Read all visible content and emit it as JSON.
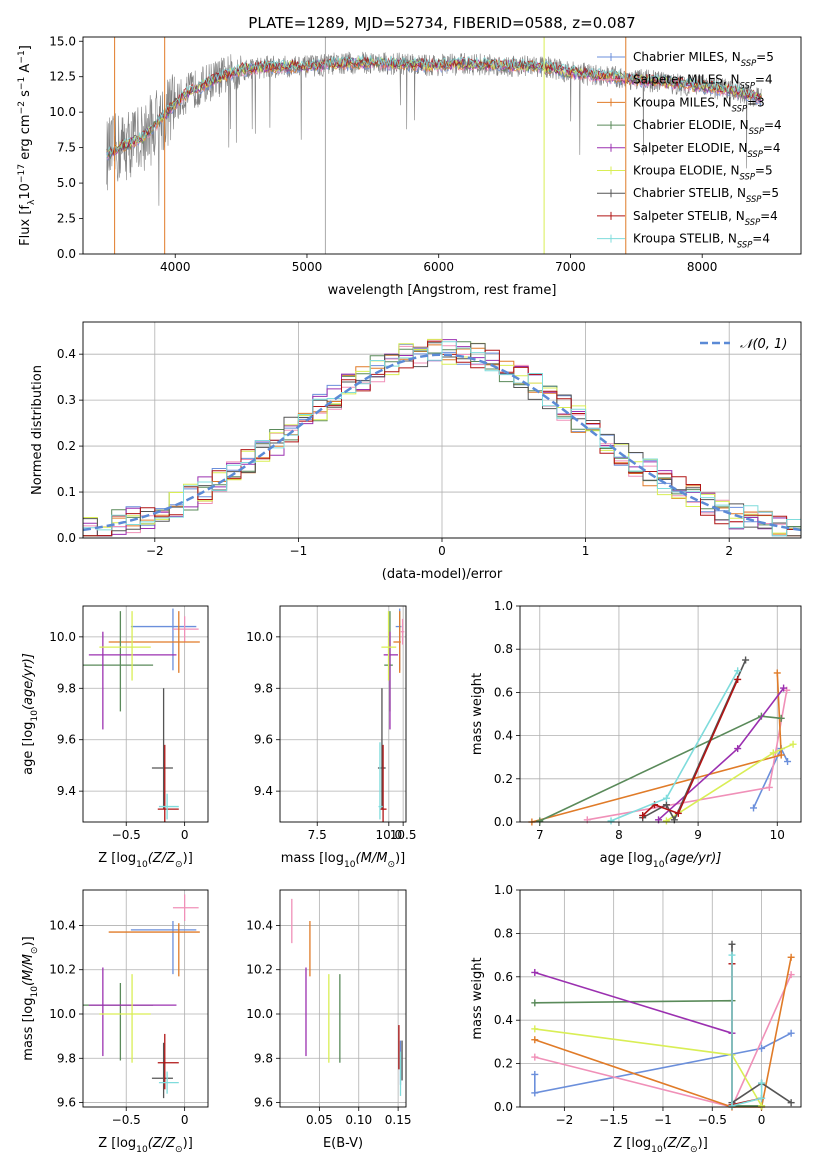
{
  "figure": {
    "title": "PLATE=1289, MJD=52734, FIBERID=0588, z=0.087"
  },
  "legend_spectrum": [
    {
      "label": "Chabrier MILES, N",
      "sub": "SSP",
      "suffix": "=5",
      "color": "#6b8fdb"
    },
    {
      "label": "Salpeter MILES, N",
      "sub": "SSP",
      "suffix": "=4",
      "color": "#f090b8"
    },
    {
      "label": "Kroupa MILES, N",
      "sub": "SSP",
      "suffix": "=3",
      "color": "#e07b28"
    },
    {
      "label": "Chabrier ELODIE, N",
      "sub": "SSP",
      "suffix": "=4",
      "color": "#5a8a5a"
    },
    {
      "label": "Salpeter ELODIE, N",
      "sub": "SSP",
      "suffix": "=4",
      "color": "#9b30b0"
    },
    {
      "label": "Kroupa ELODIE, N",
      "sub": "SSP",
      "suffix": "=5",
      "color": "#d9ee55"
    },
    {
      "label": "Chabrier STELIB, N",
      "sub": "SSP",
      "suffix": "=5",
      "color": "#555555"
    },
    {
      "label": "Salpeter STELIB, N",
      "sub": "SSP",
      "suffix": "=4",
      "color": "#b01515"
    },
    {
      "label": "Kroupa STELIB, N",
      "sub": "SSP",
      "suffix": "=4",
      "color": "#7fdcdc"
    }
  ],
  "chart_data": [
    {
      "id": "spectrum",
      "type": "line",
      "xlabel": "wavelength [Angstrom, rest frame]",
      "ylabel_parts": [
        "Flux [f",
        "λ",
        "10",
        "−17",
        " erg cm",
        "−2",
        " s",
        "−1",
        " A",
        "−1",
        "]"
      ],
      "xlim": [
        3300,
        8750
      ],
      "ylim": [
        0,
        15.3
      ],
      "xticks": [
        4000,
        5000,
        6000,
        7000,
        8000
      ],
      "yticks": [
        0.0,
        2.5,
        5.0,
        7.5,
        10.0,
        12.5,
        15.0
      ],
      "grid": false,
      "legend": "upper right",
      "continuum": [
        [
          3480,
          7.0
        ],
        [
          3600,
          7.6
        ],
        [
          3750,
          8.2
        ],
        [
          3900,
          9.6
        ],
        [
          4000,
          10.6
        ],
        [
          4100,
          11.4
        ],
        [
          4300,
          12.3
        ],
        [
          4500,
          13.0
        ],
        [
          4700,
          13.2
        ],
        [
          5000,
          13.2
        ],
        [
          5200,
          13.4
        ],
        [
          5500,
          13.5
        ],
        [
          5900,
          13.3
        ],
        [
          6200,
          13.4
        ],
        [
          6500,
          13.3
        ],
        [
          6800,
          13.2
        ],
        [
          7000,
          12.8
        ],
        [
          7300,
          12.5
        ],
        [
          7600,
          12.2
        ],
        [
          7900,
          11.9
        ],
        [
          8200,
          11.6
        ],
        [
          8450,
          11.0
        ]
      ],
      "spikes": [
        {
          "x": 3920,
          "color": "#e07b28"
        },
        {
          "x": 5140,
          "color": "#aaaaaa"
        },
        {
          "x": 6800,
          "color": "#d9ee55"
        },
        {
          "x": 7420,
          "color": "#e07b28"
        },
        {
          "x": 3540,
          "color": "#e07b28"
        }
      ]
    },
    {
      "id": "residuals",
      "type": "histogram",
      "xlabel": "(data-model)/error",
      "ylabel": "Normed distribution",
      "xlim": [
        -2.5,
        2.5
      ],
      "ylim": [
        0,
        0.47
      ],
      "xticks": [
        -2,
        -1,
        0,
        1,
        2
      ],
      "yticks": [
        0.0,
        0.1,
        0.2,
        0.3,
        0.4
      ],
      "grid": true,
      "legend": "upper right",
      "reference_label": "𝒩(0, 1)",
      "reference_color": "#5b8ad6",
      "bin_width": 0.1
    },
    {
      "id": "age_vs_Z",
      "type": "errorbar",
      "xlabel_parts": [
        "Z [log",
        "10",
        "(Z/Z",
        "⊙",
        ")]"
      ],
      "ylabel_parts": [
        "age  [log",
        "10",
        "(age/yr)]"
      ],
      "xlim": [
        -0.87,
        0.2
      ],
      "ylim": [
        9.28,
        10.12
      ],
      "xticks": [
        -0.5,
        0.0
      ],
      "yticks": [
        9.4,
        9.6,
        9.8,
        10.0
      ],
      "grid": true,
      "points": [
        {
          "x": -0.1,
          "y": 10.04,
          "xerr": [
            0.36,
            0.2
          ],
          "yerr": [
            0.17,
            0.07
          ],
          "color": "#6b8fdb"
        },
        {
          "x": 0.0,
          "y": 10.03,
          "xerr": [
            0.1,
            0.12
          ],
          "yerr": [
            0.05,
            0.05
          ],
          "color": "#f090b8"
        },
        {
          "x": -0.05,
          "y": 9.98,
          "xerr": [
            0.6,
            0.18
          ],
          "yerr": [
            0.12,
            0.12
          ],
          "color": "#e07b28"
        },
        {
          "x": -0.55,
          "y": 9.89,
          "xerr": [
            0.33,
            0.28
          ],
          "yerr": [
            0.18,
            0.21
          ],
          "color": "#5a8a5a"
        },
        {
          "x": -0.7,
          "y": 9.93,
          "xerr": [
            0.12,
            0.63
          ],
          "yerr": [
            0.29,
            0.09
          ],
          "color": "#9b30b0"
        },
        {
          "x": -0.45,
          "y": 9.96,
          "xerr": [
            0.28,
            0.16
          ],
          "yerr": [
            0.13,
            0.14
          ],
          "color": "#d9ee55"
        },
        {
          "x": -0.18,
          "y": 9.49,
          "xerr": [
            0.1,
            0.08
          ],
          "yerr": [
            0.16,
            0.31
          ],
          "color": "#555555"
        },
        {
          "x": -0.17,
          "y": 9.33,
          "xerr": [
            0.06,
            0.12
          ],
          "yerr": [
            0.05,
            0.25
          ],
          "color": "#b01515"
        },
        {
          "x": -0.15,
          "y": 9.34,
          "xerr": [
            0.07,
            0.1
          ],
          "yerr": [
            0.05,
            0.05
          ],
          "color": "#7fdcdc"
        }
      ]
    },
    {
      "id": "age_vs_mass",
      "type": "errorbar",
      "xlabel_parts": [
        "mass [log",
        "10",
        "(M/M",
        "⊙",
        ")]"
      ],
      "xlim": [
        6.2,
        10.6
      ],
      "ylim": [
        9.28,
        10.12
      ],
      "xticks": [
        7.5,
        10.0,
        10.5
      ],
      "xtick_labels": [
        "7.5",
        "10.0",
        "10.5"
      ],
      "ytick_values": [
        9.4,
        9.6,
        9.8,
        10.0
      ],
      "grid": true,
      "points": [
        {
          "x": 10.38,
          "y": 10.04,
          "xerr": [
            0.14,
            0.06
          ],
          "yerr": [
            0.17,
            0.07
          ],
          "color": "#6b8fdb"
        },
        {
          "x": 10.48,
          "y": 10.02,
          "xerr": [
            0.06,
            0.06
          ],
          "yerr": [
            0.05,
            0.05
          ],
          "color": "#f090b8"
        },
        {
          "x": 10.38,
          "y": 9.98,
          "xerr": [
            0.22,
            0.04
          ],
          "yerr": [
            0.12,
            0.12
          ],
          "color": "#e07b28"
        },
        {
          "x": 10.04,
          "y": 9.89,
          "xerr": [
            0.2,
            0.1
          ],
          "yerr": [
            0.18,
            0.21
          ],
          "color": "#5a8a5a"
        },
        {
          "x": 10.04,
          "y": 9.93,
          "xerr": [
            0.22,
            0.28
          ],
          "yerr": [
            0.29,
            0.09
          ],
          "color": "#9b30b0"
        },
        {
          "x": 9.99,
          "y": 9.96,
          "xerr": [
            0.25,
            0.27
          ],
          "yerr": [
            0.13,
            0.14
          ],
          "color": "#d9ee55"
        },
        {
          "x": 9.76,
          "y": 9.49,
          "xerr": [
            0.14,
            0.13
          ],
          "yerr": [
            0.16,
            0.31
          ],
          "color": "#555555"
        },
        {
          "x": 9.8,
          "y": 9.33,
          "xerr": [
            0.12,
            0.12
          ],
          "yerr": [
            0.05,
            0.25
          ],
          "color": "#b01515"
        },
        {
          "x": 9.69,
          "y": 9.34,
          "xerr": [
            0.05,
            0.1
          ],
          "yerr": [
            0.05,
            0.25
          ],
          "color": "#7fdcdc"
        }
      ]
    },
    {
      "id": "weight_vs_age",
      "type": "line",
      "xlabel_parts": [
        "age  [log",
        "10",
        "(age/yr)]"
      ],
      "ylabel": "mass weight",
      "xlim": [
        6.75,
        10.3
      ],
      "ylim": [
        0,
        1.0
      ],
      "xticks": [
        7,
        8,
        9,
        10
      ],
      "yticks": [
        0.0,
        0.2,
        0.4,
        0.6,
        0.8,
        1.0
      ],
      "grid": true,
      "series": [
        {
          "color": "#6b8fdb",
          "x": [
            9.7,
            10.05,
            10.13
          ],
          "y": [
            0.065,
            0.34,
            0.28
          ]
        },
        {
          "color": "#f090b8",
          "x": [
            7.6,
            9.9,
            10.12
          ],
          "y": [
            0.01,
            0.16,
            0.61
          ]
        },
        {
          "color": "#e07b28",
          "x": [
            6.9,
            10.05,
            10.0
          ],
          "y": [
            0.0,
            0.31,
            0.69
          ]
        },
        {
          "color": "#5a8a5a",
          "x": [
            7.0,
            9.8,
            10.05
          ],
          "y": [
            0.005,
            0.49,
            0.48
          ]
        },
        {
          "color": "#9b30b0",
          "x": [
            8.5,
            9.5,
            10.08
          ],
          "y": [
            0.01,
            0.34,
            0.62
          ]
        },
        {
          "color": "#d9ee55",
          "x": [
            8.6,
            9.95,
            10.2
          ],
          "y": [
            0.005,
            0.32,
            0.36
          ]
        },
        {
          "color": "#555555",
          "x": [
            8.3,
            8.6,
            8.7,
            9.6
          ],
          "y": [
            0.02,
            0.08,
            0.01,
            0.75
          ]
        },
        {
          "color": "#b01515",
          "x": [
            8.3,
            8.45,
            8.75,
            9.5
          ],
          "y": [
            0.03,
            0.08,
            0.04,
            0.66
          ]
        },
        {
          "color": "#7fdcdc",
          "x": [
            7.9,
            8.6,
            9.5
          ],
          "y": [
            0.005,
            0.11,
            0.7
          ]
        }
      ]
    },
    {
      "id": "mass_vs_Z",
      "type": "errorbar",
      "xlabel_parts": [
        "Z [log",
        "10",
        "(Z/Z",
        "⊙",
        ")]"
      ],
      "ylabel_parts": [
        "mass [log",
        "10",
        "(M/M",
        "⊙",
        ")]"
      ],
      "xlim": [
        -0.87,
        0.2
      ],
      "ylim": [
        9.58,
        10.56
      ],
      "xticks": [
        -0.5,
        0.0
      ],
      "yticks": [
        9.6,
        9.8,
        10.0,
        10.2,
        10.4
      ],
      "grid": true,
      "points": [
        {
          "x": -0.1,
          "y": 10.38,
          "xerr": [
            0.36,
            0.2
          ],
          "yerr": [
            0.2,
            0.04
          ],
          "color": "#6b8fdb"
        },
        {
          "x": 0.0,
          "y": 10.48,
          "xerr": [
            0.1,
            0.12
          ],
          "yerr": [
            0.06,
            0.06
          ],
          "color": "#f090b8"
        },
        {
          "x": -0.05,
          "y": 10.37,
          "xerr": [
            0.6,
            0.18
          ],
          "yerr": [
            0.2,
            0.04
          ],
          "color": "#e07b28"
        },
        {
          "x": -0.55,
          "y": 10.04,
          "xerr": [
            0.33,
            0.28
          ],
          "yerr": [
            0.25,
            0.1
          ],
          "color": "#5a8a5a"
        },
        {
          "x": -0.7,
          "y": 10.04,
          "xerr": [
            0.12,
            0.63
          ],
          "yerr": [
            0.23,
            0.17
          ],
          "color": "#9b30b0"
        },
        {
          "x": -0.45,
          "y": 10.0,
          "xerr": [
            0.28,
            0.16
          ],
          "yerr": [
            0.22,
            0.18
          ],
          "color": "#d9ee55"
        },
        {
          "x": -0.18,
          "y": 9.71,
          "xerr": [
            0.1,
            0.08
          ],
          "yerr": [
            0.09,
            0.16
          ],
          "color": "#555555"
        },
        {
          "x": -0.17,
          "y": 9.78,
          "xerr": [
            0.06,
            0.12
          ],
          "yerr": [
            0.12,
            0.13
          ],
          "color": "#b01515"
        },
        {
          "x": -0.15,
          "y": 9.69,
          "xerr": [
            0.07,
            0.1
          ],
          "yerr": [
            0.05,
            0.05
          ],
          "color": "#7fdcdc"
        }
      ]
    },
    {
      "id": "mass_vs_EBV",
      "type": "errorbar",
      "xlabel": "E(B-V)",
      "xlim": [
        0.0,
        0.16
      ],
      "ylim": [
        9.58,
        10.56
      ],
      "xticks": [
        0.05,
        0.1,
        0.15
      ],
      "xtick_labels": [
        "0.05",
        "0.10",
        "0.15"
      ],
      "ytick_values": [
        9.6,
        9.8,
        10.0,
        10.2,
        10.4
      ],
      "grid": true,
      "points": [
        {
          "x": 0.153,
          "y": 9.78,
          "yerr": [
            0.1,
            0.1
          ],
          "color": "#6b8fdb"
        },
        {
          "x": 0.015,
          "y": 10.42,
          "yerr": [
            0.1,
            0.1
          ],
          "color": "#f090b8"
        },
        {
          "x": 0.038,
          "y": 10.3,
          "yerr": [
            0.13,
            0.12
          ],
          "color": "#e07b28"
        },
        {
          "x": 0.076,
          "y": 10.0,
          "yerr": [
            0.22,
            0.18
          ],
          "color": "#5a8a5a"
        },
        {
          "x": 0.033,
          "y": 10.0,
          "yerr": [
            0.19,
            0.21
          ],
          "color": "#9b30b0"
        },
        {
          "x": 0.062,
          "y": 10.0,
          "yerr": [
            0.22,
            0.18
          ],
          "color": "#d9ee55"
        },
        {
          "x": 0.155,
          "y": 9.79,
          "yerr": [
            0.09,
            0.09
          ],
          "color": "#555555"
        },
        {
          "x": 0.151,
          "y": 9.85,
          "yerr": [
            0.1,
            0.1
          ],
          "color": "#b01515"
        },
        {
          "x": 0.153,
          "y": 9.73,
          "yerr": [
            0.1,
            0.1
          ],
          "color": "#7fdcdc"
        }
      ]
    },
    {
      "id": "weight_vs_Z",
      "type": "line",
      "xlabel_parts": [
        "Z [log",
        "10",
        "(Z/Z",
        "⊙",
        ")]"
      ],
      "ylabel": "mass weight",
      "xlim": [
        -2.45,
        0.4
      ],
      "ylim": [
        0,
        1.0
      ],
      "xticks": [
        -2.0,
        -1.5,
        -1.0,
        -0.5,
        0.0
      ],
      "yticks": [
        0.0,
        0.2,
        0.4,
        0.6,
        0.8,
        1.0
      ],
      "grid": true,
      "series": [
        {
          "color": "#6b8fdb",
          "x": [
            -2.3,
            -2.3,
            0.0,
            0.3
          ],
          "y": [
            0.15,
            0.065,
            0.27,
            0.34
          ]
        },
        {
          "color": "#f090b8",
          "x": [
            -2.3,
            -0.3,
            0.3
          ],
          "y": [
            0.23,
            0.0,
            0.61
          ]
        },
        {
          "color": "#e07b28",
          "x": [
            -2.3,
            -0.3,
            0.0,
            0.3
          ],
          "y": [
            0.31,
            0.0,
            0.0,
            0.69
          ]
        },
        {
          "color": "#5a8a5a",
          "x": [
            -2.3,
            -0.3,
            -0.3,
            0.0
          ],
          "y": [
            0.48,
            0.49,
            0.005,
            0.005
          ]
        },
        {
          "color": "#9b30b0",
          "x": [
            -2.3,
            -0.3
          ],
          "y": [
            0.62,
            0.34
          ]
        },
        {
          "color": "#d9ee55",
          "x": [
            -2.3,
            -0.3,
            0.0
          ],
          "y": [
            0.36,
            0.24,
            0.005
          ]
        },
        {
          "color": "#555555",
          "x": [
            -0.3,
            -0.3,
            0.0,
            0.3
          ],
          "y": [
            0.75,
            0.02,
            0.11,
            0.02
          ]
        },
        {
          "color": "#b01515",
          "x": [
            -0.3,
            -0.3,
            0.0
          ],
          "y": [
            0.66,
            0.01,
            0.04
          ]
        },
        {
          "color": "#7fdcdc",
          "x": [
            -0.3,
            -0.3,
            0.0,
            0.0
          ],
          "y": [
            0.7,
            0.005,
            0.04,
            0.11
          ]
        }
      ]
    }
  ]
}
